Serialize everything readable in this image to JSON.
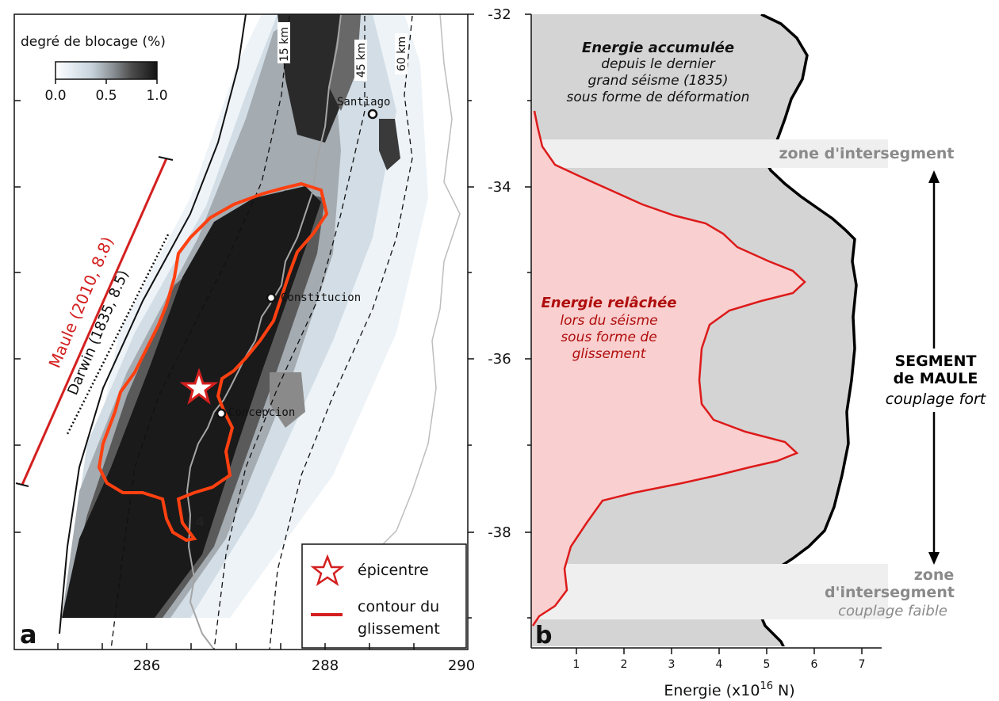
{
  "panel_a": {
    "panel_label": "a",
    "colorbar": {
      "title": "degré de blocage (%)",
      "tick_labels": [
        "0.0",
        "0.5",
        "1.0"
      ]
    },
    "depth_contours": [
      "15 km",
      "45 km",
      "60 km"
    ],
    "cities": [
      "Santiago",
      "Constitucion",
      "Concepcion"
    ],
    "ruptures": [
      {
        "label": "Maule (2010, 8.8)",
        "color": "#d42020"
      },
      {
        "label": "Darwin (1835, 8.5)",
        "color": "#111111"
      }
    ],
    "marker_label": "4",
    "legend": {
      "epicentre": "épicentre",
      "contour_line1": "contour du",
      "contour_line2": "glissement"
    },
    "x_ticks": [
      "286",
      "288",
      "290"
    ],
    "y_ticks": [
      "-32",
      "-34",
      "-36",
      "-38"
    ],
    "colors": {
      "slip_contour": "#ff4010",
      "star": "#d42020",
      "locking": "#1a1a1a"
    }
  },
  "panel_b": {
    "panel_label": "b",
    "accumulated": {
      "line1": "Energie accumulée",
      "line2": "depuis le dernier",
      "line3": "grand séisme (1835)",
      "line4": "sous forme de déformation"
    },
    "released": {
      "line1": "Energie relâchée",
      "line2": "lors du séisme",
      "line3": "sous forme de",
      "line4": "glissement"
    },
    "intersegment_north": "zone d'intersegment",
    "intersegment_south": {
      "line1": "zone",
      "line2": "d'intersegment",
      "line3": "couplage faible"
    },
    "segment": {
      "line1": "SEGMENT",
      "line2": "de MAULE",
      "line3": "couplage fort"
    },
    "x_ticks": [
      "1",
      "2",
      "3",
      "4",
      "5",
      "6",
      "7"
    ],
    "x_label_prefix": "Energie (x10",
    "x_label_exp": "16",
    "x_label_suffix": " N)",
    "colors": {
      "accumulated_fill": "#d4d4d4",
      "released_fill": "#f9cfcf",
      "released_line": "#dd1a1a",
      "intersegment_fill": "#efefef"
    }
  }
}
